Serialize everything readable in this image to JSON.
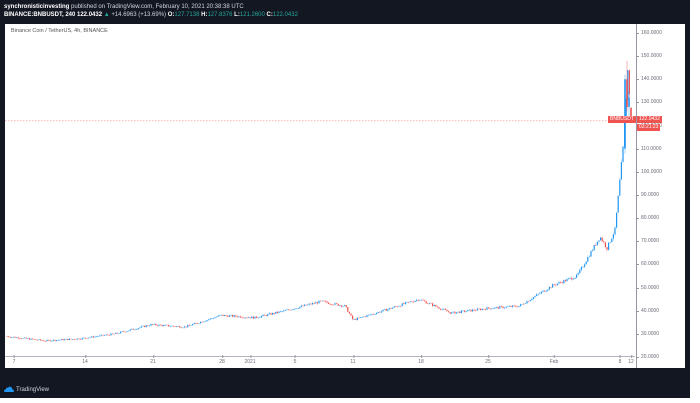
{
  "header": {
    "author": "synchronisticinvesting",
    "published_text": "published on TradingView.com, February 10, 2021 20:38:38 UTC",
    "symbol_line": "BINANCE:BNBUSDT, 240 122.0432",
    "change": "+14.6963 (+13.69%)",
    "o_label": "O:",
    "o_value": "127.7138",
    "h_label": "H:",
    "h_value": "127.8376",
    "l_label": "L:",
    "l_value": "121.2600",
    "c_label": "C:",
    "c_value": "122.0432"
  },
  "chart_title": "Binance Coin / TetherUS, 4h, BINANCE",
  "price_label": {
    "symbol": "BNBUSDT",
    "price": "122.0432",
    "countdown": "03:21:23"
  },
  "footer": {
    "brand": "TradingView"
  },
  "colors": {
    "up": "#2196f3",
    "down": "#ef5350",
    "background": "#131722",
    "panel": "#ffffff"
  },
  "chart_data": {
    "type": "candlestick",
    "title": "Binance Coin / TetherUS, 4h, BINANCE",
    "xlabel": "",
    "ylabel": "",
    "ylim": [
      15,
      162
    ],
    "yticks": [
      "160.0000",
      "150.0000",
      "140.0000",
      "130.0000",
      "120.0000",
      "110.0000",
      "100.0000",
      "90.0000",
      "80.0000",
      "70.0000",
      "60.0000",
      "50.0000",
      "40.0000",
      "30.0000",
      "20.0000"
    ],
    "xticks": [
      "7",
      "14",
      "21",
      "28",
      "2021",
      "5",
      "11",
      "18",
      "25",
      "Feb",
      "8",
      "12"
    ],
    "last_price": 122.0432,
    "approx_close_path": {
      "x": [
        "Dec 7",
        "Dec 10",
        "Dec 14",
        "Dec 17",
        "Dec 21",
        "Dec 24",
        "Dec 28",
        "Dec 31",
        "Jan 3",
        "Jan 6",
        "Jan 9",
        "Jan 11",
        "Jan 14",
        "Jan 18",
        "Jan 21",
        "Jan 25",
        "Jan 28",
        "Feb 1",
        "Feb 3",
        "Feb 5",
        "Feb 6",
        "Feb 7",
        "Feb 8",
        "Feb 9",
        "Feb 10"
      ],
      "values": [
        29,
        27,
        28,
        30,
        34,
        33,
        38,
        37,
        40,
        44,
        42,
        36,
        40,
        45,
        39,
        41,
        42,
        51,
        55,
        72,
        67,
        75,
        110,
        145,
        122
      ]
    },
    "grid": false,
    "legend": "none"
  }
}
